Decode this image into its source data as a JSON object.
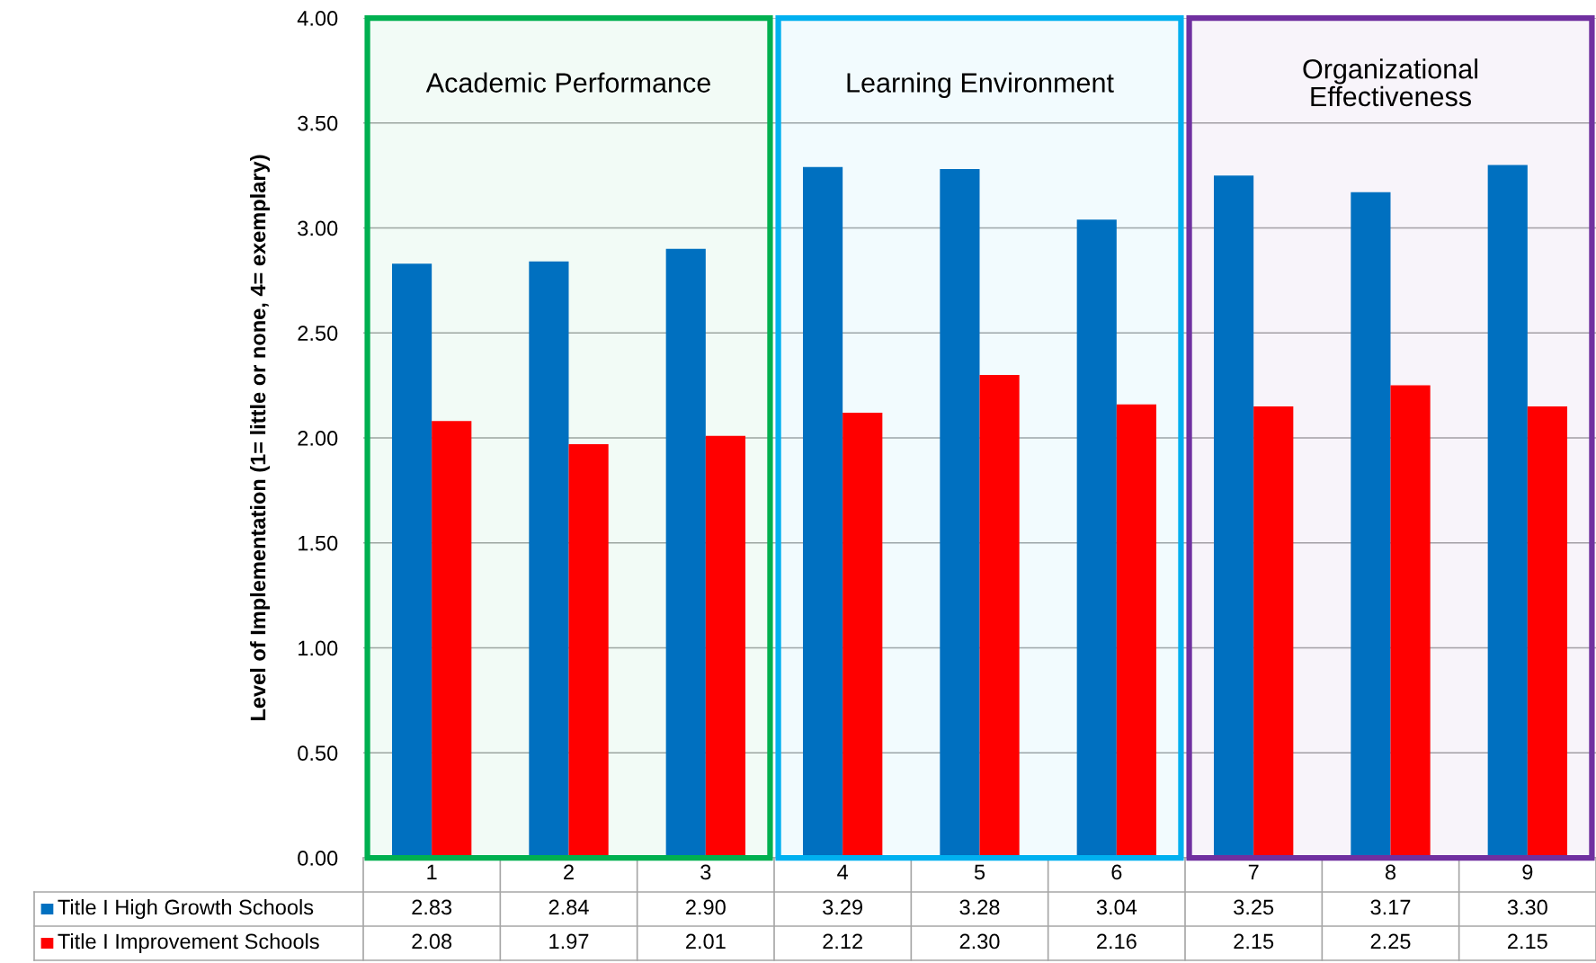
{
  "chart_data": {
    "type": "bar",
    "ylabel": "Level of Implementation (1= little or none, 4= exemplary)",
    "categories": [
      "1",
      "2",
      "3",
      "4",
      "5",
      "6",
      "7",
      "8",
      "9"
    ],
    "series": [
      {
        "name": "Title I High Growth Schools",
        "color": "#0070c0",
        "values": [
          2.83,
          2.84,
          2.9,
          3.29,
          3.28,
          3.04,
          3.25,
          3.17,
          3.3
        ],
        "value_labels": [
          "2.83",
          "2.84",
          "2.90",
          "3.29",
          "3.28",
          "3.04",
          "3.25",
          "3.17",
          "3.30"
        ]
      },
      {
        "name": "Title I Improvement Schools",
        "color": "#ff0000",
        "values": [
          2.08,
          1.97,
          2.01,
          2.12,
          2.3,
          2.16,
          2.15,
          2.25,
          2.15
        ],
        "value_labels": [
          "2.08",
          "1.97",
          "2.01",
          "2.12",
          "2.30",
          "2.16",
          "2.15",
          "2.25",
          "2.15"
        ]
      }
    ],
    "ylim": [
      0,
      4
    ],
    "yticks": [
      {
        "value": 0,
        "label": "0.00"
      },
      {
        "value": 0.5,
        "label": "0.50"
      },
      {
        "value": 1,
        "label": "1.00"
      },
      {
        "value": 1.5,
        "label": "1.50"
      },
      {
        "value": 2,
        "label": "2.00"
      },
      {
        "value": 2.5,
        "label": "2.50"
      },
      {
        "value": 3,
        "label": "3.00"
      },
      {
        "value": 3.5,
        "label": "3.50"
      },
      {
        "value": 4,
        "label": "4.00"
      }
    ],
    "grid": "y",
    "legend": "bottom",
    "bands": [
      {
        "axis": "x",
        "from": "1",
        "to": "3",
        "label": "Academic Performance",
        "color": "#00b050"
      },
      {
        "axis": "x",
        "from": "4",
        "to": "6",
        "label": "Learning Environment",
        "color": "#00b0f0"
      },
      {
        "axis": "x",
        "from": "7",
        "to": "9",
        "label": "Organizational\nEffectiveness",
        "color": "#7030a0"
      }
    ]
  }
}
